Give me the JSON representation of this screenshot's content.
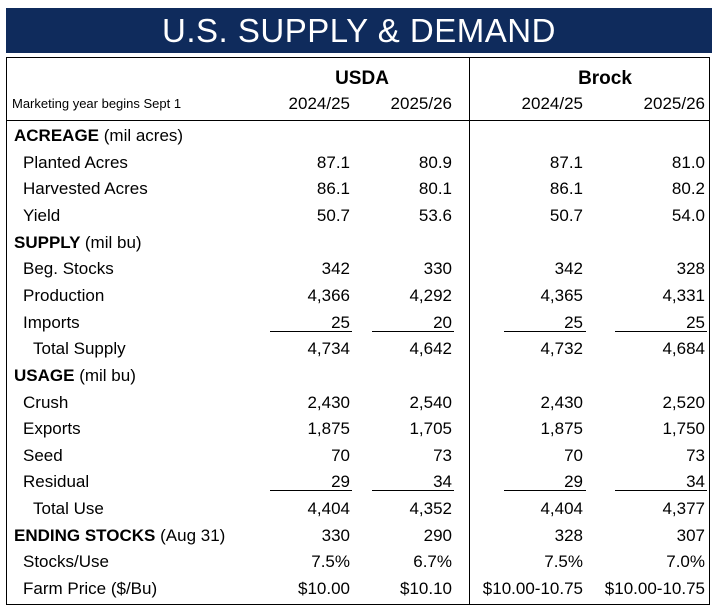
{
  "title": "U.S. SUPPLY & DEMAND",
  "groups": {
    "usda": "USDA",
    "brock": "Brock"
  },
  "subheader": "Marketing year begins Sept 1",
  "columns": [
    "2024/25",
    "2025/26",
    "2024/25",
    "2025/26"
  ],
  "rows": [
    {
      "type": "section",
      "label": "ACREAGE",
      "unit": "(mil acres)",
      "values": [
        "",
        "",
        "",
        ""
      ]
    },
    {
      "type": "item",
      "label": "Planted Acres",
      "values": [
        "87.1",
        "80.9",
        "87.1",
        "81.0"
      ]
    },
    {
      "type": "item",
      "label": "Harvested Acres",
      "values": [
        "86.1",
        "80.1",
        "86.1",
        "80.2"
      ]
    },
    {
      "type": "item",
      "label": "Yield",
      "values": [
        "50.7",
        "53.6",
        "50.7",
        "54.0"
      ]
    },
    {
      "type": "section",
      "label": "SUPPLY",
      "unit": "(mil bu)",
      "values": [
        "",
        "",
        "",
        ""
      ]
    },
    {
      "type": "item",
      "label": "Beg. Stocks",
      "values": [
        "342",
        "330",
        "342",
        "328"
      ]
    },
    {
      "type": "item",
      "label": "Production",
      "values": [
        "4,366",
        "4,292",
        "4,365",
        "4,331"
      ]
    },
    {
      "type": "item",
      "label": "Imports",
      "values": [
        "25",
        "20",
        "25",
        "25"
      ],
      "underline": true
    },
    {
      "type": "total",
      "label": "Total Supply",
      "values": [
        "4,734",
        "4,642",
        "4,732",
        "4,684"
      ]
    },
    {
      "type": "section",
      "label": "USAGE",
      "unit": "(mil bu)",
      "values": [
        "",
        "",
        "",
        ""
      ]
    },
    {
      "type": "item",
      "label": "Crush",
      "values": [
        "2,430",
        "2,540",
        "2,430",
        "2,520"
      ]
    },
    {
      "type": "item",
      "label": "Exports",
      "values": [
        "1,875",
        "1,705",
        "1,875",
        "1,750"
      ]
    },
    {
      "type": "item",
      "label": "Seed",
      "values": [
        "70",
        "73",
        "70",
        "73"
      ]
    },
    {
      "type": "item",
      "label": "Residual",
      "values": [
        "29",
        "34",
        "29",
        "34"
      ],
      "underline": true
    },
    {
      "type": "total",
      "label": "Total Use",
      "values": [
        "4,404",
        "4,352",
        "4,404",
        "4,377"
      ]
    },
    {
      "type": "section",
      "label": "ENDING STOCKS",
      "unit": "(Aug 31)",
      "values": [
        "330",
        "290",
        "328",
        "307"
      ]
    },
    {
      "type": "item",
      "label": "Stocks/Use",
      "values": [
        "7.5%",
        "6.7%",
        "7.5%",
        "7.0%"
      ]
    },
    {
      "type": "item",
      "label": "Farm Price ($/Bu)",
      "values": [
        "$10.00",
        "$10.10",
        "$10.00-10.75",
        "$10.00-10.75"
      ]
    }
  ],
  "colors": {
    "title_bg": "#0f2b5c",
    "title_text": "#ffffff"
  }
}
